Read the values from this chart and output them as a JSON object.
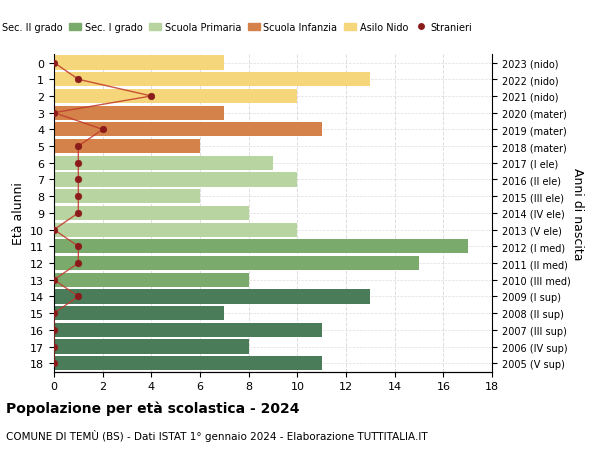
{
  "ages": [
    0,
    1,
    2,
    3,
    4,
    5,
    6,
    7,
    8,
    9,
    10,
    11,
    12,
    13,
    14,
    15,
    16,
    17,
    18
  ],
  "right_labels": [
    "2023 (nido)",
    "2022 (nido)",
    "2021 (nido)",
    "2020 (mater)",
    "2019 (mater)",
    "2018 (mater)",
    "2017 (I ele)",
    "2016 (II ele)",
    "2015 (III ele)",
    "2014 (IV ele)",
    "2013 (V ele)",
    "2012 (I med)",
    "2011 (II med)",
    "2010 (III med)",
    "2009 (I sup)",
    "2008 (II sup)",
    "2007 (III sup)",
    "2006 (IV sup)",
    "2005 (V sup)"
  ],
  "bar_values": [
    7,
    13,
    10,
    7,
    11,
    6,
    9,
    10,
    6,
    8,
    10,
    17,
    15,
    8,
    13,
    7,
    11,
    8,
    11
  ],
  "bar_colors": [
    "#f5d67a",
    "#f5d67a",
    "#f5d67a",
    "#d4824a",
    "#d4824a",
    "#d4824a",
    "#b8d4a0",
    "#b8d4a0",
    "#b8d4a0",
    "#b8d4a0",
    "#b8d4a0",
    "#7aab6d",
    "#7aab6d",
    "#7aab6d",
    "#4a7c59",
    "#4a7c59",
    "#4a7c59",
    "#4a7c59",
    "#4a7c59"
  ],
  "stranieri_x": [
    0,
    1,
    4,
    0,
    2,
    1,
    1,
    1,
    1,
    1,
    0,
    1,
    1,
    0,
    1,
    0,
    0,
    0,
    0
  ],
  "legend_labels": [
    "Sec. II grado",
    "Sec. I grado",
    "Scuola Primaria",
    "Scuola Infanzia",
    "Asilo Nido",
    "Stranieri"
  ],
  "legend_colors": [
    "#4a7c59",
    "#7aab6d",
    "#b8d4a0",
    "#d4824a",
    "#f5d67a",
    "#8b1a1a"
  ],
  "title1": "Popolazione per età scolastica - 2024",
  "title2": "COMUNE DI TEMÙ (BS) - Dati ISTAT 1° gennaio 2024 - Elaborazione TUTTITALIA.IT",
  "ylabel_left": "Età alunni",
  "ylabel_right": "Anni di nascita",
  "xlim": [
    0,
    18
  ],
  "ylim_min": -0.5,
  "ylim_max": 18.5,
  "bg_color": "#ffffff",
  "grid_color": "#dddddd",
  "stranieri_color": "#8b1a1a",
  "stranieri_line_color": "#c0392b"
}
